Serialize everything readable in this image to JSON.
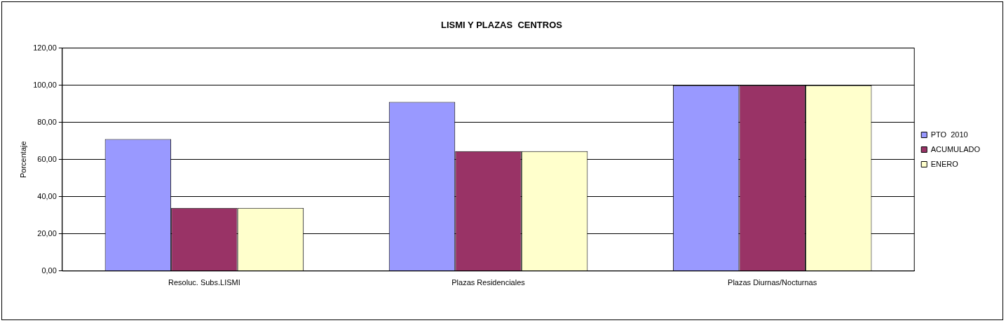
{
  "chart_data": {
    "type": "bar",
    "title": "LISMI Y PLAZAS  CENTROS",
    "ylabel": "Porcentaje",
    "categories": [
      "Resoluc. Subs.LISMI",
      "Plazas Residenciales",
      "Plazas Diurnas/Nocturnas"
    ],
    "series": [
      {
        "name": "PTO  2010",
        "color": "#9999ff",
        "values": [
          71,
          91,
          100
        ]
      },
      {
        "name": "ACUMULADO",
        "color": "#993366",
        "values": [
          34,
          64.5,
          100
        ]
      },
      {
        "name": "ENERO",
        "color": "#ffffcc",
        "values": [
          34,
          64.5,
          100
        ]
      }
    ],
    "ylim": [
      0,
      120
    ],
    "yticks": [
      {
        "value": 0,
        "label": "0,00"
      },
      {
        "value": 20,
        "label": "20,00"
      },
      {
        "value": 40,
        "label": "40,00"
      },
      {
        "value": 60,
        "label": "60,00"
      },
      {
        "value": 80,
        "label": "80,00"
      },
      {
        "value": 100,
        "label": "100,00"
      },
      {
        "value": 120,
        "label": "120,00"
      }
    ],
    "grid": "y",
    "legend": "right"
  }
}
